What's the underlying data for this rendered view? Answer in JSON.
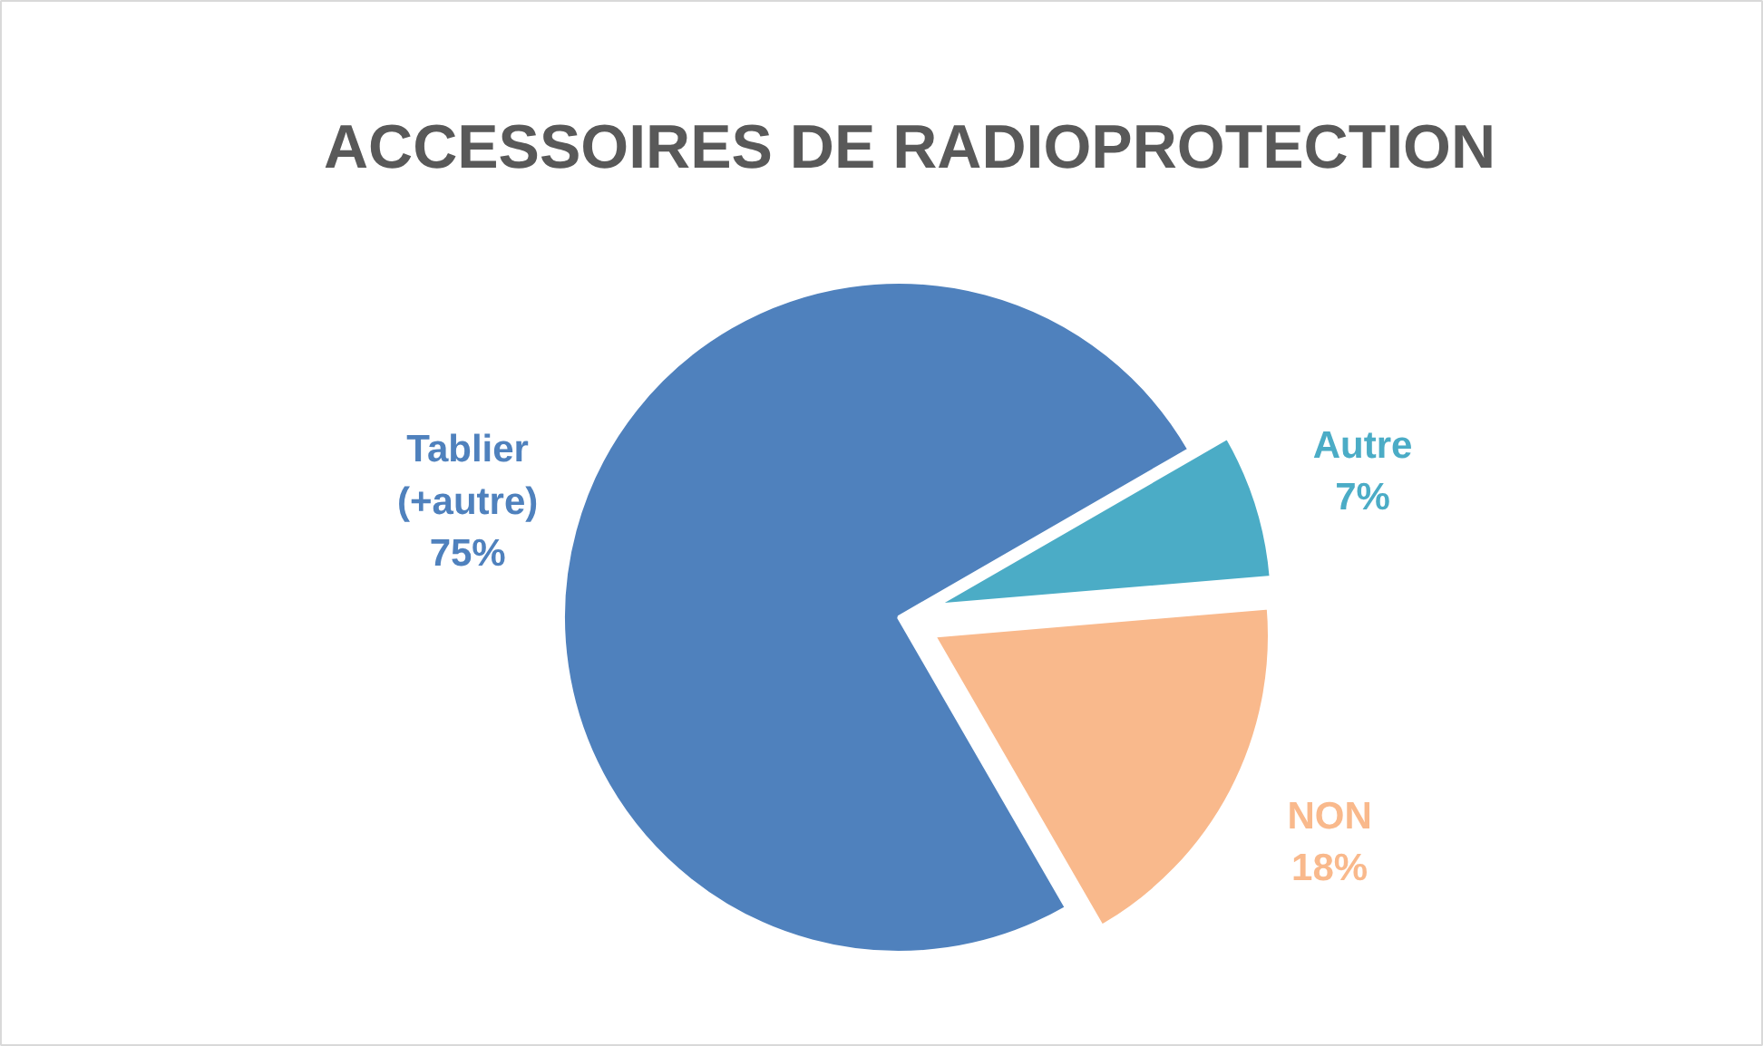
{
  "chart_data": {
    "type": "pie",
    "title": "ACCESSOIRES DE RADIOPROTECTION",
    "categories": [
      "Tablier\n(+autre)",
      "Autre",
      "NON"
    ],
    "values": [
      75,
      7,
      18
    ],
    "colors": [
      "#4f81bd",
      "#4bacc6",
      "#f9b98c"
    ],
    "value_labels": [
      "75%",
      "7%",
      "18%"
    ]
  }
}
